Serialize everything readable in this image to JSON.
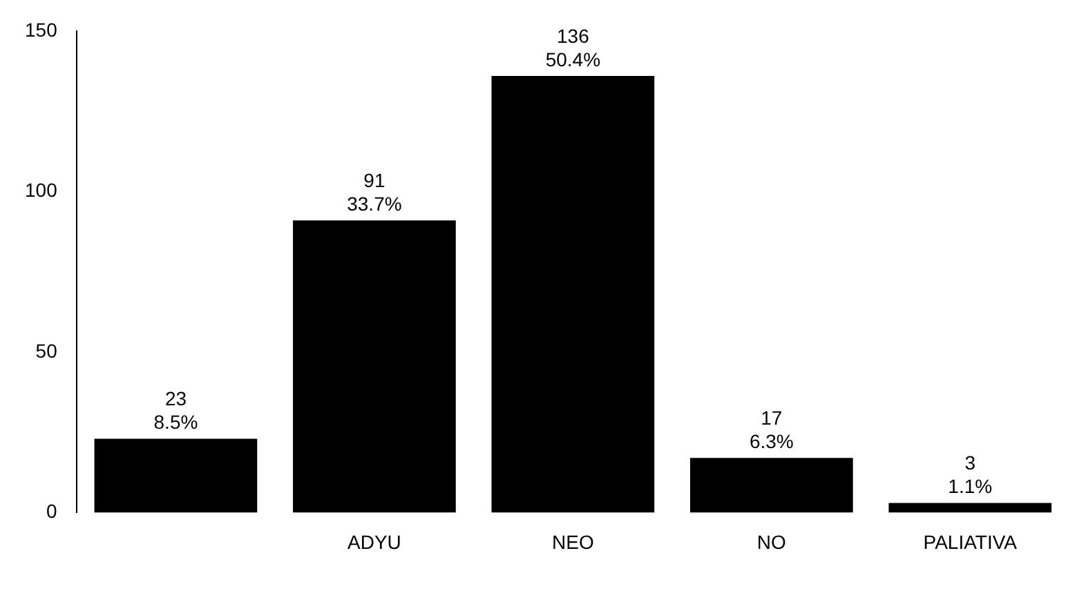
{
  "chart_data": {
    "type": "bar",
    "categories": [
      null,
      "ADYU",
      "NEO",
      "NO",
      "PALIATIVA"
    ],
    "values": [
      23,
      91,
      136,
      17,
      3
    ],
    "color": "#000000",
    "value_labels": [
      "23\n8.5%",
      "91\n33.7%",
      "136\n50.4%",
      "17\n6.3%",
      "3\n1.1%"
    ],
    "ylim": [
      0,
      150
    ],
    "yticks": [
      0,
      50,
      100,
      150
    ],
    "grid": false,
    "legend": false
  }
}
